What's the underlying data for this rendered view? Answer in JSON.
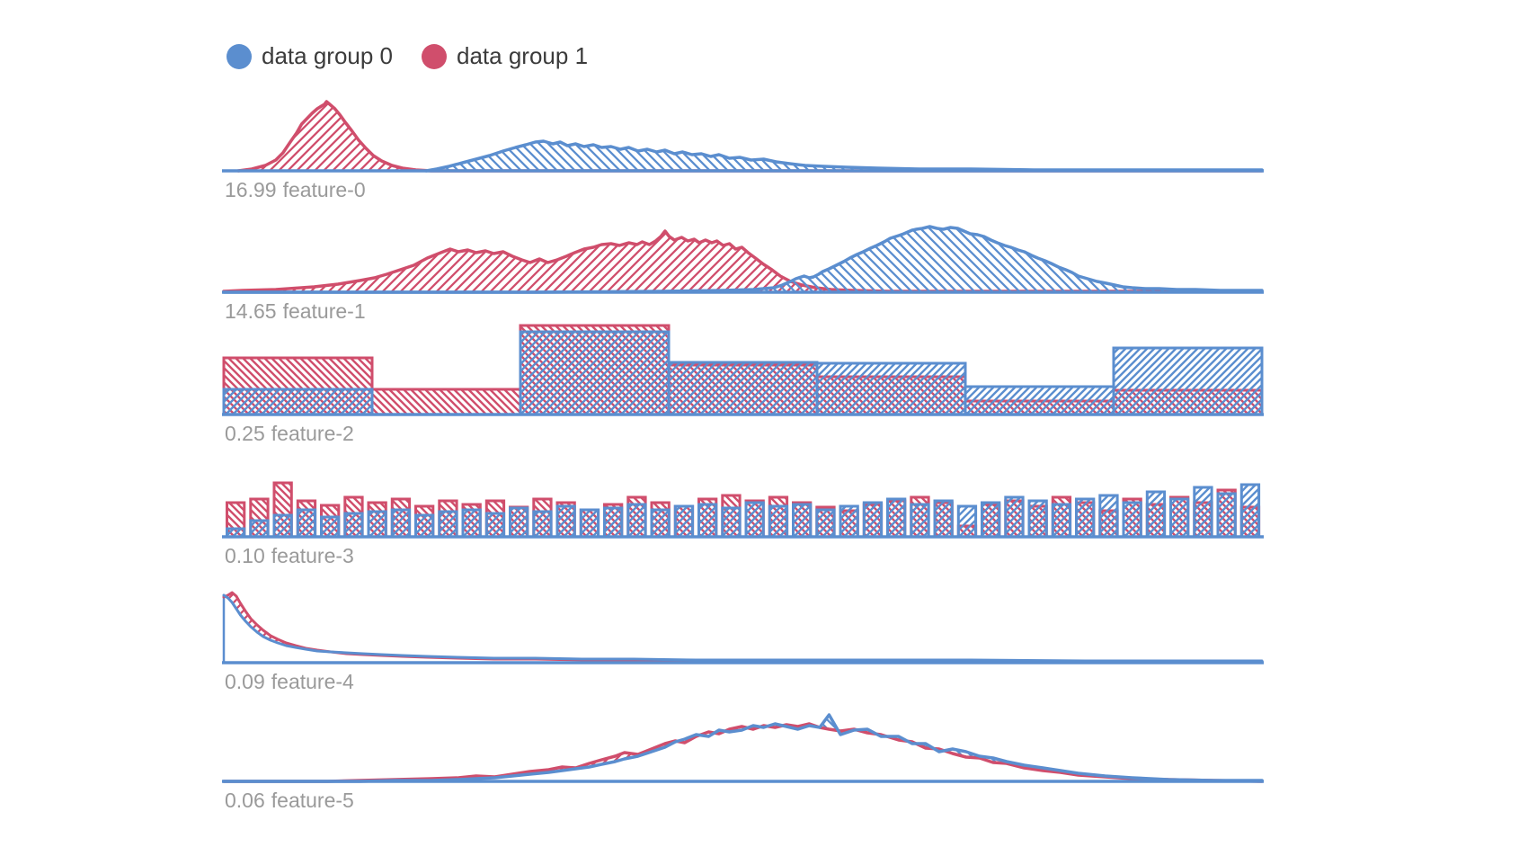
{
  "legend": {
    "items": [
      {
        "label": "data group 0",
        "color": "#5b8ecf"
      },
      {
        "label": "data group 1",
        "color": "#d04e6c"
      }
    ]
  },
  "colors": {
    "group0": "#5b8ecf",
    "group1": "#d04e6c",
    "label_text": "#9a9a9a",
    "legend_text": "#3b3b3b",
    "background": "#ffffff"
  },
  "encoding_note": "x values are per-mille (0-1000) of plot width; heights are px above each row baseline",
  "chart_data": [
    {
      "type": "area",
      "feature": "feature-0",
      "value_label": "16.99",
      "group1_red": [
        [
          14,
          0
        ],
        [
          27,
          2
        ],
        [
          40,
          6
        ],
        [
          50,
          12
        ],
        [
          57,
          20
        ],
        [
          64,
          32
        ],
        [
          70,
          42
        ],
        [
          75,
          52
        ],
        [
          80,
          58
        ],
        [
          85,
          64
        ],
        [
          90,
          69
        ],
        [
          94,
          72
        ],
        [
          97,
          74
        ],
        [
          99,
          77
        ],
        [
          103,
          73
        ],
        [
          107,
          69
        ],
        [
          112,
          62
        ],
        [
          117,
          54
        ],
        [
          123,
          45
        ],
        [
          130,
          34
        ],
        [
          137,
          25
        ],
        [
          144,
          17
        ],
        [
          152,
          11
        ],
        [
          162,
          6
        ],
        [
          172,
          3
        ],
        [
          185,
          1
        ],
        [
          200,
          0
        ],
        [
          1000,
          0
        ]
      ],
      "group0_blue": [
        [
          195,
          0
        ],
        [
          205,
          2
        ],
        [
          217,
          5
        ],
        [
          230,
          9
        ],
        [
          243,
          13
        ],
        [
          256,
          17
        ],
        [
          269,
          22
        ],
        [
          281,
          26
        ],
        [
          291,
          29
        ],
        [
          300,
          32
        ],
        [
          308,
          33
        ],
        [
          317,
          30
        ],
        [
          324,
          32
        ],
        [
          331,
          28
        ],
        [
          339,
          30
        ],
        [
          347,
          27
        ],
        [
          356,
          29
        ],
        [
          364,
          26
        ],
        [
          373,
          27
        ],
        [
          382,
          24
        ],
        [
          390,
          26
        ],
        [
          399,
          22
        ],
        [
          408,
          24
        ],
        [
          417,
          21
        ],
        [
          425,
          23
        ],
        [
          434,
          19
        ],
        [
          442,
          21
        ],
        [
          451,
          18
        ],
        [
          460,
          19
        ],
        [
          469,
          16
        ],
        [
          477,
          18
        ],
        [
          487,
          14
        ],
        [
          497,
          15
        ],
        [
          508,
          12
        ],
        [
          520,
          13
        ],
        [
          532,
          10
        ],
        [
          545,
          8
        ],
        [
          560,
          6
        ],
        [
          578,
          5
        ],
        [
          600,
          4
        ],
        [
          630,
          3
        ],
        [
          670,
          2
        ],
        [
          720,
          2
        ],
        [
          780,
          1
        ],
        [
          850,
          1
        ],
        [
          1000,
          1
        ]
      ]
    },
    {
      "type": "area",
      "feature": "feature-1",
      "value_label": "14.65",
      "group1_red": [
        [
          0,
          1
        ],
        [
          18,
          2
        ],
        [
          50,
          3
        ],
        [
          87,
          6
        ],
        [
          110,
          9
        ],
        [
          131,
          13
        ],
        [
          145,
          16
        ],
        [
          157,
          20
        ],
        [
          170,
          25
        ],
        [
          183,
          30
        ],
        [
          196,
          38
        ],
        [
          209,
          44
        ],
        [
          218,
          48
        ],
        [
          226,
          45
        ],
        [
          235,
          47
        ],
        [
          243,
          44
        ],
        [
          252,
          46
        ],
        [
          260,
          43
        ],
        [
          269,
          45
        ],
        [
          278,
          40
        ],
        [
          287,
          36
        ],
        [
          295,
          33
        ],
        [
          304,
          37
        ],
        [
          312,
          33
        ],
        [
          321,
          36
        ],
        [
          330,
          40
        ],
        [
          338,
          44
        ],
        [
          347,
          48
        ],
        [
          356,
          50
        ],
        [
          364,
          53
        ],
        [
          373,
          54
        ],
        [
          381,
          52
        ],
        [
          390,
          55
        ],
        [
          398,
          53
        ],
        [
          403,
          56
        ],
        [
          410,
          53
        ],
        [
          416,
          57
        ],
        [
          421,
          62
        ],
        [
          425,
          68
        ],
        [
          429,
          62
        ],
        [
          434,
          58
        ],
        [
          441,
          61
        ],
        [
          447,
          57
        ],
        [
          453,
          59
        ],
        [
          458,
          55
        ],
        [
          464,
          58
        ],
        [
          470,
          55
        ],
        [
          475,
          57
        ],
        [
          481,
          52
        ],
        [
          487,
          54
        ],
        [
          493,
          48
        ],
        [
          499,
          50
        ],
        [
          505,
          44
        ],
        [
          512,
          38
        ],
        [
          520,
          31
        ],
        [
          528,
          25
        ],
        [
          536,
          18
        ],
        [
          546,
          12
        ],
        [
          557,
          8
        ],
        [
          570,
          5
        ],
        [
          585,
          3
        ],
        [
          605,
          2
        ],
        [
          640,
          1
        ],
        [
          700,
          1
        ],
        [
          1000,
          1
        ]
      ],
      "group0_blue": [
        [
          0,
          0
        ],
        [
          300,
          0
        ],
        [
          420,
          1
        ],
        [
          480,
          2
        ],
        [
          510,
          3
        ],
        [
          530,
          5
        ],
        [
          538,
          8
        ],
        [
          546,
          12
        ],
        [
          551,
          15
        ],
        [
          559,
          18
        ],
        [
          564,
          16
        ],
        [
          568,
          17
        ],
        [
          573,
          20
        ],
        [
          577,
          23
        ],
        [
          583,
          26
        ],
        [
          590,
          30
        ],
        [
          597,
          34
        ],
        [
          603,
          38
        ],
        [
          610,
          42
        ],
        [
          616,
          45
        ],
        [
          623,
          49
        ],
        [
          629,
          52
        ],
        [
          636,
          56
        ],
        [
          642,
          60
        ],
        [
          650,
          63
        ],
        [
          655,
          65
        ],
        [
          659,
          67
        ],
        [
          663,
          69
        ],
        [
          667,
          70
        ],
        [
          673,
          71
        ],
        [
          680,
          73
        ],
        [
          687,
          71
        ],
        [
          693,
          70
        ],
        [
          700,
          72
        ],
        [
          707,
          71
        ],
        [
          713,
          68
        ],
        [
          719,
          65
        ],
        [
          726,
          64
        ],
        [
          732,
          62
        ],
        [
          739,
          58
        ],
        [
          745,
          55
        ],
        [
          752,
          52
        ],
        [
          758,
          50
        ],
        [
          765,
          47
        ],
        [
          771,
          45
        ],
        [
          778,
          41
        ],
        [
          784,
          38
        ],
        [
          791,
          35
        ],
        [
          797,
          32
        ],
        [
          804,
          28
        ],
        [
          811,
          25
        ],
        [
          817,
          22
        ],
        [
          823,
          18
        ],
        [
          832,
          15
        ],
        [
          841,
          12
        ],
        [
          850,
          10
        ],
        [
          858,
          8
        ],
        [
          866,
          6
        ],
        [
          875,
          5
        ],
        [
          888,
          4
        ],
        [
          901,
          4
        ],
        [
          918,
          3
        ],
        [
          936,
          3
        ],
        [
          960,
          2
        ],
        [
          1000,
          2
        ]
      ]
    },
    {
      "type": "bar",
      "feature": "feature-2",
      "value_label": "0.25",
      "bins": 7,
      "group1_red": [
        63,
        28,
        99,
        55,
        42,
        15,
        27
      ],
      "group0_blue": [
        28,
        0,
        92,
        58,
        57,
        31,
        74
      ]
    },
    {
      "type": "bar",
      "feature": "feature-3",
      "value_label": "0.10",
      "bins": 44,
      "group1_red": [
        38,
        42,
        60,
        40,
        35,
        44,
        38,
        42,
        34,
        40,
        36,
        40,
        33,
        42,
        38,
        30,
        36,
        44,
        38,
        34,
        42,
        46,
        40,
        44,
        38,
        33,
        29,
        36,
        40,
        44,
        38,
        12,
        36,
        40,
        34,
        44,
        38,
        29,
        42,
        36,
        44,
        38,
        52,
        33
      ],
      "group0_blue": [
        9,
        18,
        24,
        30,
        22,
        26,
        28,
        30,
        24,
        28,
        30,
        26,
        32,
        28,
        34,
        30,
        32,
        36,
        30,
        34,
        36,
        32,
        38,
        34,
        36,
        30,
        34,
        38,
        42,
        36,
        40,
        34,
        38,
        44,
        40,
        36,
        42,
        46,
        38,
        50,
        42,
        55,
        48,
        58
      ]
    },
    {
      "type": "line",
      "feature": "feature-4",
      "value_label": "0.09",
      "x": [
        0,
        4,
        8,
        12,
        16,
        21,
        26,
        32,
        38,
        45,
        52,
        60,
        69,
        79,
        90,
        103,
        118,
        134,
        152,
        172,
        196,
        225,
        260,
        300,
        345,
        395,
        455,
        530,
        620,
        720,
        830,
        1000
      ],
      "group1_red": [
        73,
        75,
        78,
        74,
        66,
        57,
        49,
        42,
        36,
        30,
        26,
        22,
        19,
        16,
        14,
        12,
        10,
        9,
        8,
        7,
        6,
        5,
        4,
        4,
        3,
        3,
        2,
        2,
        2,
        2,
        1,
        1
      ],
      "group0_blue": [
        75,
        72,
        67,
        60,
        53,
        46,
        40,
        34,
        29,
        25,
        22,
        19,
        17,
        15,
        13,
        12,
        11,
        10,
        9,
        8,
        7,
        6,
        5,
        5,
        4,
        4,
        3,
        3,
        3,
        3,
        2,
        2
      ]
    },
    {
      "type": "line",
      "feature": "feature-5",
      "value_label": "0.06",
      "x": [
        0,
        100,
        131,
        165,
        200,
        226,
        243,
        261,
        278,
        295,
        313,
        326,
        339,
        352,
        364,
        377,
        386,
        399,
        412,
        425,
        435,
        444,
        455,
        467,
        477,
        487,
        499,
        510,
        520,
        531,
        542,
        553,
        564,
        574,
        583,
        594,
        607,
        620,
        633,
        650,
        663,
        676,
        689,
        702,
        715,
        728,
        741,
        754,
        771,
        789,
        806,
        823,
        849,
        875,
        910,
        953,
        1000
      ],
      "group1_red": [
        0,
        0,
        1,
        2,
        3,
        4,
        6,
        5,
        8,
        11,
        13,
        16,
        15,
        20,
        24,
        28,
        32,
        30,
        36,
        42,
        45,
        43,
        50,
        55,
        53,
        58,
        61,
        58,
        62,
        60,
        63,
        61,
        64,
        60,
        58,
        56,
        58,
        54,
        52,
        46,
        44,
        37,
        36,
        31,
        27,
        26,
        21,
        20,
        15,
        12,
        10,
        7,
        5,
        3,
        2,
        1,
        0
      ],
      "group0_blue": [
        0,
        0,
        0,
        1,
        1,
        2,
        3,
        4,
        6,
        8,
        10,
        12,
        14,
        16,
        19,
        22,
        25,
        28,
        33,
        38,
        44,
        47,
        52,
        50,
        57,
        55,
        57,
        62,
        60,
        64,
        61,
        58,
        62,
        60,
        74,
        52,
        57,
        58,
        50,
        50,
        42,
        42,
        33,
        36,
        33,
        28,
        26,
        22,
        18,
        15,
        12,
        9,
        6,
        4,
        2,
        1,
        1
      ]
    }
  ]
}
